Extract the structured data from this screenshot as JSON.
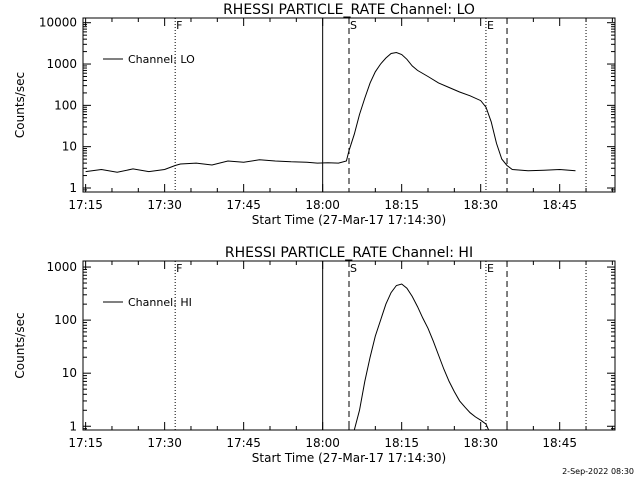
{
  "chart_data": [
    {
      "type": "line",
      "title": "RHESSI PARTICLE_RATE Channel: LO",
      "xlabel": "Start Time (27-Mar-17 17:14:30)",
      "ylabel": "Counts/sec",
      "y_scale": "log",
      "ylim": [
        0.8,
        13000
      ],
      "xlim": [
        "17:14:30",
        "18:55:30"
      ],
      "x_tick_labels": [
        "17:15",
        "17:30",
        "17:45",
        "18:00",
        "18:15",
        "18:30",
        "18:45"
      ],
      "y_tick_labels": [
        "1",
        "10",
        "100",
        "1000",
        "10000"
      ],
      "y_tick_values": [
        1,
        10,
        100,
        1000,
        10000
      ],
      "legend": {
        "placement": "top-left",
        "entries": [
          "Channel: LO"
        ]
      },
      "markers": [
        {
          "time": "17:32:00",
          "label": "F",
          "style": "dotted"
        },
        {
          "time": "18:00:00",
          "label": "",
          "style": "solid"
        },
        {
          "time": "18:05:00",
          "label": "S",
          "style": "dashed"
        },
        {
          "time": "18:31:00",
          "label": "E",
          "style": "dotted"
        },
        {
          "time": "18:35:00",
          "label": "",
          "style": "dashed"
        },
        {
          "time": "18:50:00",
          "label": "",
          "style": "dotted"
        }
      ],
      "series": [
        {
          "name": "Channel: LO",
          "x": [
            "17:15:00",
            "17:18:00",
            "17:21:00",
            "17:24:00",
            "17:27:00",
            "17:30:00",
            "17:32:00",
            "17:33:00",
            "17:36:00",
            "17:39:00",
            "17:42:00",
            "17:45:00",
            "17:48:00",
            "17:51:00",
            "17:54:00",
            "17:57:00",
            "17:59:00",
            "18:01:00",
            "18:03:00",
            "18:04:30",
            "18:05:00",
            "18:06:00",
            "18:07:00",
            "18:08:00",
            "18:09:00",
            "18:10:00",
            "18:11:00",
            "18:12:00",
            "18:13:00",
            "18:14:00",
            "18:15:00",
            "18:16:00",
            "18:17:00",
            "18:18:00",
            "18:20:00",
            "18:22:00",
            "18:24:00",
            "18:26:00",
            "18:28:00",
            "18:30:00",
            "18:31:00",
            "18:32:00",
            "18:33:00",
            "18:34:00",
            "18:35:00",
            "18:36:00",
            "18:39:00",
            "18:42:00",
            "18:45:00",
            "18:48:00"
          ],
          "y": [
            2.5,
            2.8,
            2.4,
            2.9,
            2.5,
            2.8,
            3.5,
            3.8,
            4.0,
            3.6,
            4.5,
            4.2,
            4.8,
            4.5,
            4.3,
            4.2,
            4.0,
            4.1,
            4.0,
            4.5,
            8,
            20,
            60,
            150,
            350,
            650,
            1000,
            1400,
            1800,
            1900,
            1700,
            1300,
            900,
            700,
            500,
            350,
            270,
            210,
            170,
            130,
            90,
            40,
            12,
            5,
            3.5,
            2.8,
            2.6,
            2.7,
            2.8,
            2.6
          ]
        }
      ]
    },
    {
      "type": "line",
      "title": "RHESSI PARTICLE_RATE Channel: HI",
      "xlabel": "Start Time (27-Mar-17 17:14:30)",
      "ylabel": "Counts/sec",
      "y_scale": "log",
      "ylim": [
        0.85,
        1300
      ],
      "xlim": [
        "17:14:30",
        "18:55:30"
      ],
      "x_tick_labels": [
        "17:15",
        "17:30",
        "17:45",
        "18:00",
        "18:15",
        "18:30",
        "18:45"
      ],
      "y_tick_labels": [
        "1",
        "10",
        "100",
        "1000"
      ],
      "y_tick_values": [
        1,
        10,
        100,
        1000
      ],
      "legend": {
        "placement": "top-left",
        "entries": [
          "Channel: HI"
        ]
      },
      "markers": [
        {
          "time": "17:32:00",
          "label": "F",
          "style": "dotted"
        },
        {
          "time": "18:00:00",
          "label": "",
          "style": "solid"
        },
        {
          "time": "18:05:00",
          "label": "S",
          "style": "dashed"
        },
        {
          "time": "18:31:00",
          "label": "E",
          "style": "dotted"
        },
        {
          "time": "18:35:00",
          "label": "",
          "style": "dashed"
        },
        {
          "time": "18:50:00",
          "label": "",
          "style": "dotted"
        }
      ],
      "series": [
        {
          "name": "Channel: HI",
          "x": [
            "18:06:00",
            "18:07:00",
            "18:08:00",
            "18:09:00",
            "18:10:00",
            "18:11:00",
            "18:12:00",
            "18:13:00",
            "18:14:00",
            "18:15:00",
            "18:16:00",
            "18:17:00",
            "18:18:00",
            "18:19:00",
            "18:20:00",
            "18:21:00",
            "18:22:00",
            "18:23:00",
            "18:24:00",
            "18:25:00",
            "18:26:00",
            "18:27:00",
            "18:28:00",
            "18:29:00",
            "18:30:00",
            "18:31:00",
            "18:31:30"
          ],
          "y": [
            0.85,
            2,
            7,
            20,
            50,
            100,
            200,
            330,
            450,
            480,
            400,
            280,
            180,
            110,
            70,
            40,
            22,
            12,
            7,
            4.5,
            3,
            2.3,
            1.8,
            1.5,
            1.3,
            1.1,
            0.85
          ]
        }
      ]
    }
  ],
  "footer": {
    "date_stamp": "2-Sep-2022 08:30"
  }
}
